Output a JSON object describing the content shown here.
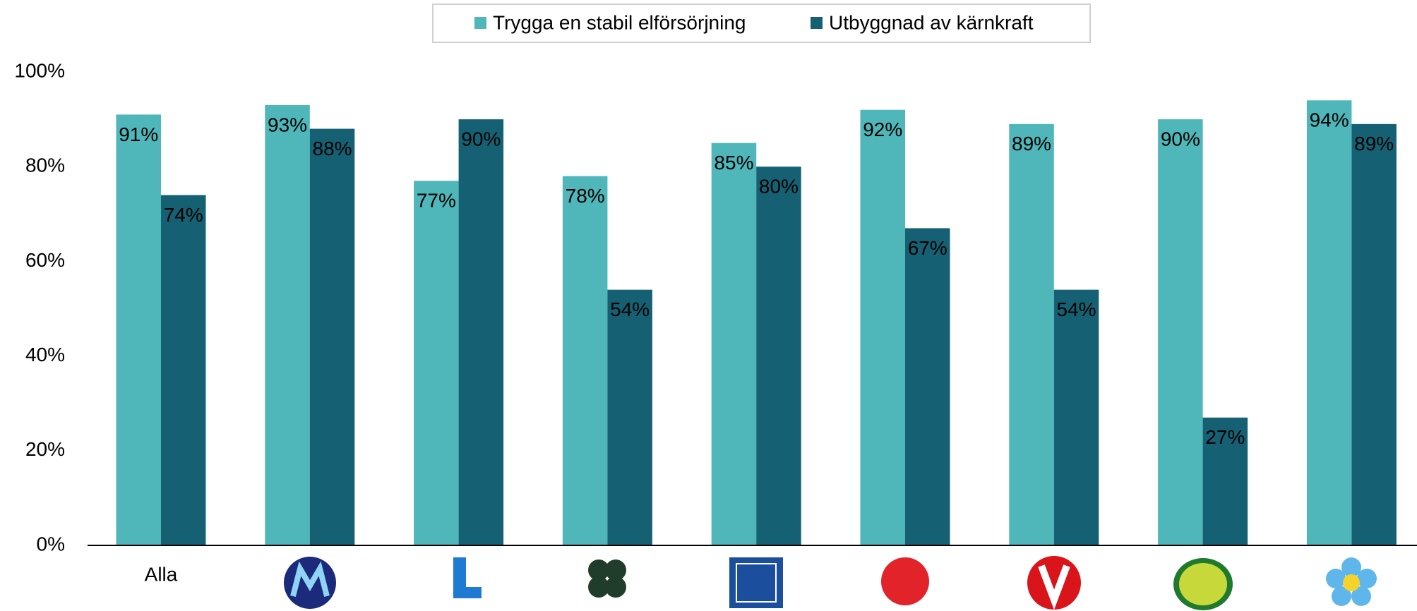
{
  "chart_data": {
    "type": "bar",
    "categories": [
      "Alla",
      null,
      null,
      null,
      null,
      null,
      null,
      null,
      null
    ],
    "series": [
      {
        "name": "Trygga en stabil elförsörjning",
        "color": "#4fb6b9",
        "values": [
          91,
          93,
          77,
          78,
          85,
          92,
          89,
          90,
          94
        ],
        "value_labels": [
          "91%",
          "93%",
          "77%",
          "78%",
          "85%",
          "92%",
          "89%",
          "90%",
          "94%"
        ]
      },
      {
        "name": "Utbyggnad av kärnkraft",
        "color": "#156173",
        "values": [
          74,
          88,
          90,
          54,
          80,
          67,
          54,
          27,
          89
        ],
        "value_labels": [
          "74%",
          "88%",
          "90%",
          "54%",
          "80%",
          "67%",
          "54%",
          "27%",
          "89%"
        ]
      }
    ],
    "ylim": [
      0,
      100
    ],
    "yticks": [
      {
        "value": 0,
        "label": "0%"
      },
      {
        "value": 20,
        "label": "20%"
      },
      {
        "value": 40,
        "label": "40%"
      },
      {
        "value": 60,
        "label": "60%"
      },
      {
        "value": 80,
        "label": "80%"
      },
      {
        "value": 100,
        "label": "100%"
      }
    ],
    "legend": "top",
    "grid": false
  }
}
